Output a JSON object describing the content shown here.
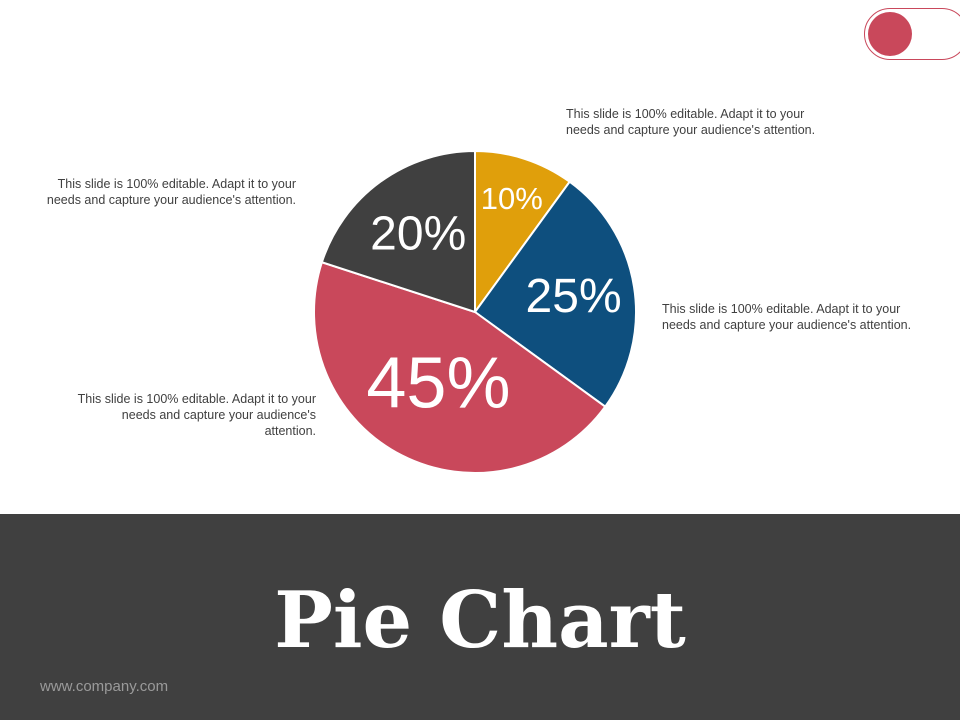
{
  "chart_data": {
    "type": "pie",
    "title": "Pie Chart",
    "start_angle_deg": 0,
    "direction": "clockwise",
    "slices": [
      {
        "label": "10%",
        "value": 10,
        "color": "#e09f0b"
      },
      {
        "label": "25%",
        "value": 25,
        "color": "#0e4f7e"
      },
      {
        "label": "45%",
        "value": 45,
        "color": "#c9485b"
      },
      {
        "label": "20%",
        "value": 20,
        "color": "#404040"
      }
    ],
    "slice_stroke_color": "#ffffff"
  },
  "callouts": {
    "top_right": "This slide is 100% editable. Adapt it to your needs and capture your audience's attention.",
    "right": "This slide is 100% editable. Adapt it to your needs and capture your audience's attention.",
    "top_left": "This slide is 100% editable. Adapt it to your needs and capture your audience's attention.",
    "bottom_left": "This slide is 100% editable. Adapt it to your needs and capture your audience's attention."
  },
  "footer": {
    "title": "Pie Chart",
    "url": "www.company.com"
  },
  "colors": {
    "accent": "#c9485b",
    "footer_bg": "#404040",
    "text": "#404040"
  }
}
